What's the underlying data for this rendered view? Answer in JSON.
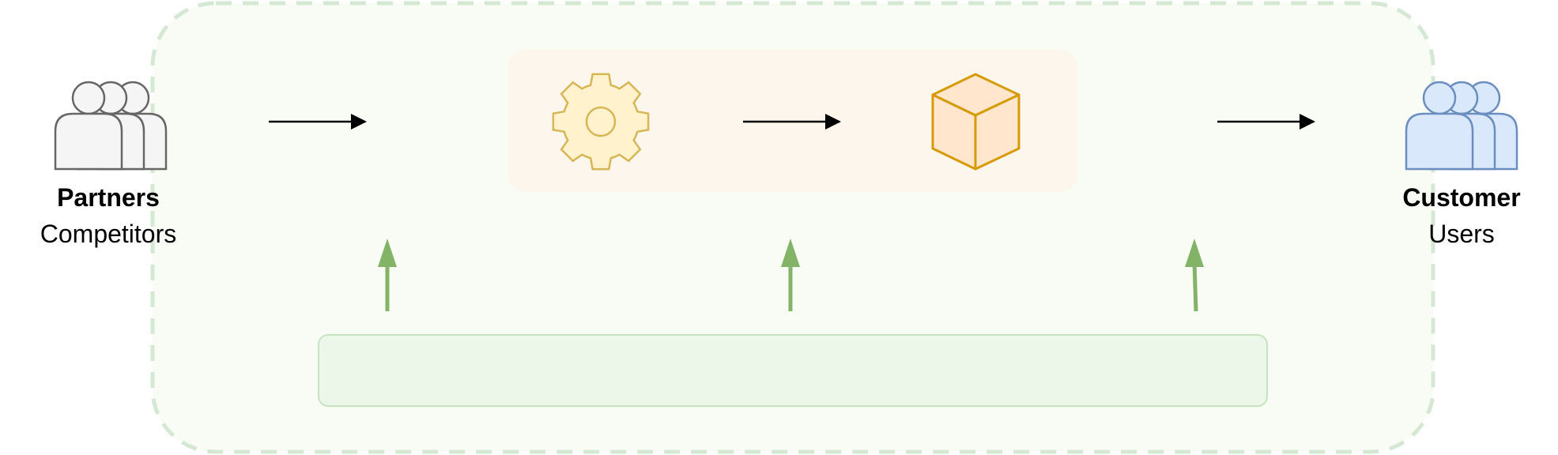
{
  "partners": {
    "title": "Partners",
    "subtitle": "Competitors"
  },
  "customer": {
    "title": "Customer",
    "subtitle": "Users"
  },
  "icons": {
    "partners": "users-group-icon",
    "process": "gear-icon",
    "product": "cube-icon",
    "customer": "users-group-icon"
  },
  "colors": {
    "container_fill": "#f8fcf5",
    "container_stroke": "#d5e8d4",
    "process_fill": "#fdf6ec",
    "bar_fill": "#ecf6e9",
    "bar_stroke": "#c7e4c0",
    "support_arrow": "#82b366",
    "flow_arrow": "#000000",
    "partners_fill": "#f5f5f5",
    "partners_stroke": "#666666",
    "customer_fill": "#dae8fc",
    "customer_stroke": "#6c8ebf",
    "gear_fill": "#fff2cc",
    "gear_stroke": "#d6b656",
    "cube_fill": "#ffe6cc",
    "cube_stroke": "#d79b00"
  }
}
